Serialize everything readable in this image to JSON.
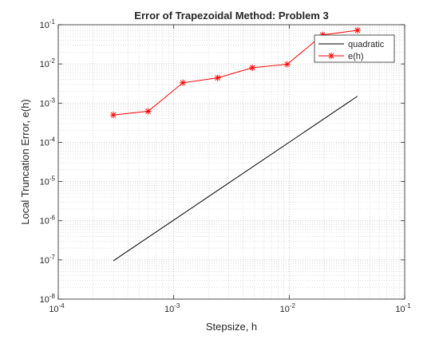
{
  "chart_data": {
    "type": "line",
    "title": "Error of Trapezoidal Method: Problem 3",
    "xlabel": "Stepsize, h",
    "ylabel": "Local Truncation Error, e(h)",
    "xscale": "log",
    "yscale": "log",
    "xlim": [
      0.0001,
      0.1
    ],
    "ylim": [
      1e-08,
      0.1
    ],
    "grid": true,
    "minor_grid": true,
    "legend_position": "top-right",
    "x_ticks": [
      {
        "base": "10",
        "exp": "-4",
        "value": 0.0001
      },
      {
        "base": "10",
        "exp": "-3",
        "value": 0.001
      },
      {
        "base": "10",
        "exp": "-2",
        "value": 0.01
      },
      {
        "base": "10",
        "exp": "-1",
        "value": 0.1
      }
    ],
    "y_ticks": [
      {
        "base": "10",
        "exp": "-8",
        "value": 1e-08
      },
      {
        "base": "10",
        "exp": "-7",
        "value": 1e-07
      },
      {
        "base": "10",
        "exp": "-6",
        "value": 1e-06
      },
      {
        "base": "10",
        "exp": "-5",
        "value": 1e-05
      },
      {
        "base": "10",
        "exp": "-4",
        "value": 0.0001
      },
      {
        "base": "10",
        "exp": "-3",
        "value": 0.001
      },
      {
        "base": "10",
        "exp": "-2",
        "value": 0.01
      },
      {
        "base": "10",
        "exp": "-1",
        "value": 0.1
      }
    ],
    "series": [
      {
        "name": "quadratic",
        "color": "#000000",
        "marker": "none",
        "x": [
          0.0003,
          0.039
        ],
        "y": [
          9.5e-08,
          0.0015
        ]
      },
      {
        "name": "e(h)",
        "color": "#ff0000",
        "marker": "asterisk",
        "x": [
          0.0003,
          0.0006,
          0.0012,
          0.0024,
          0.0048,
          0.0096,
          0.0195,
          0.039
        ],
        "y": [
          0.0005,
          0.00062,
          0.0033,
          0.0044,
          0.008,
          0.0098,
          0.055,
          0.072
        ]
      }
    ]
  }
}
